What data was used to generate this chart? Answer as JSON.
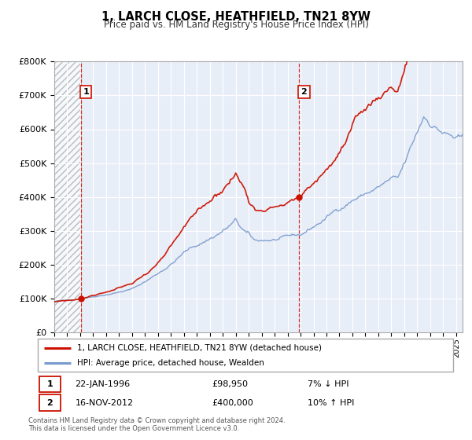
{
  "title": "1, LARCH CLOSE, HEATHFIELD, TN21 8YW",
  "subtitle": "Price paid vs. HM Land Registry's House Price Index (HPI)",
  "background_color": "#ffffff",
  "plot_bg_color": "#e8eef8",
  "hatch_bg_color": "#d8d8d8",
  "grid_color": "#ffffff",
  "hpi_line_color": "#7799cc",
  "price_line_color": "#cc1100",
  "ylim": [
    0,
    800000
  ],
  "xlim_start": 1994.0,
  "xlim_end": 2025.5,
  "transaction1_x": 1996.06,
  "transaction1_y": 98950,
  "transaction2_x": 2012.88,
  "transaction2_y": 400000,
  "legend_label1": "1, LARCH CLOSE, HEATHFIELD, TN21 8YW (detached house)",
  "legend_label2": "HPI: Average price, detached house, Wealden",
  "table_row1_date": "22-JAN-1996",
  "table_row1_price": "£98,950",
  "table_row1_hpi": "7% ↓ HPI",
  "table_row2_date": "16-NOV-2012",
  "table_row2_price": "£400,000",
  "table_row2_hpi": "10% ↑ HPI",
  "footer1": "Contains HM Land Registry data © Crown copyright and database right 2024.",
  "footer2": "This data is licensed under the Open Government Licence v3.0.",
  "ytick_labels": [
    "£0",
    "£100K",
    "£200K",
    "£300K",
    "£400K",
    "£500K",
    "£600K",
    "£700K",
    "£800K"
  ],
  "ytick_values": [
    0,
    100000,
    200000,
    300000,
    400000,
    500000,
    600000,
    700000,
    800000
  ]
}
